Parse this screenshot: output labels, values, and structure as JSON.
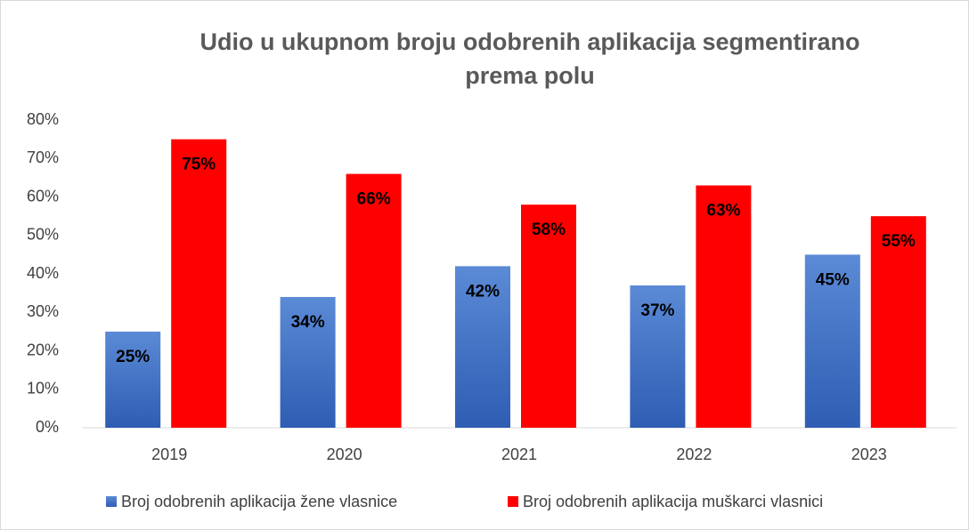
{
  "chart_data": {
    "type": "bar",
    "title": "Udio u ukupnom broju odobrenih aplikacija segmentirano prema polu",
    "categories": [
      "2019",
      "2020",
      "2021",
      "2022",
      "2023"
    ],
    "series": [
      {
        "name": "Broj odobrenih aplikacija žene vlasnice",
        "color": "#4472c4",
        "values": [
          25,
          34,
          42,
          37,
          45
        ],
        "value_labels": [
          "25%",
          "34%",
          "42%",
          "37%",
          "45%"
        ]
      },
      {
        "name": "Broj odobrenih aplikacija muškarci vlasnici",
        "color": "#ff0000",
        "values": [
          75,
          66,
          58,
          63,
          55
        ],
        "value_labels": [
          "75%",
          "66%",
          "58%",
          "63%",
          "55%"
        ]
      }
    ],
    "ylim": [
      0,
      80
    ],
    "yticks": [
      {
        "value": 0,
        "label": "0%"
      },
      {
        "value": 10,
        "label": "10%"
      },
      {
        "value": 20,
        "label": "20%"
      },
      {
        "value": 30,
        "label": "30%"
      },
      {
        "value": 40,
        "label": "40%"
      },
      {
        "value": 50,
        "label": "50%"
      },
      {
        "value": 60,
        "label": "60%"
      },
      {
        "value": 70,
        "label": "70%"
      },
      {
        "value": 80,
        "label": "80%"
      }
    ],
    "grid": false,
    "legend": "bottom"
  }
}
